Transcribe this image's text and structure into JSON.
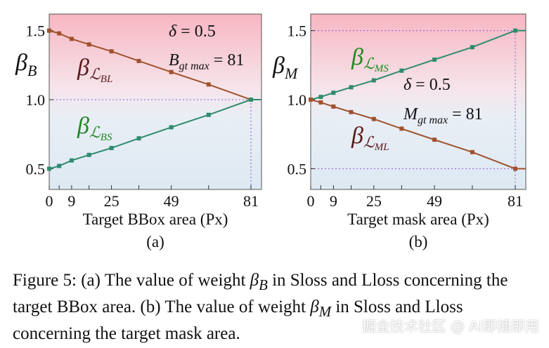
{
  "chart_data": [
    {
      "type": "line",
      "panel_label": "(a)",
      "xlabel": "Target BBox area (Px)",
      "ylabel": "β",
      "ylabel_sub": "B",
      "x_ticks": [
        0,
        4,
        9,
        16,
        25,
        36,
        49,
        64,
        81
      ],
      "x_tick_labels": [
        "0",
        "",
        "9",
        "",
        "25",
        "",
        "49",
        "",
        "81"
      ],
      "y_ticks": [
        0.5,
        1.0,
        1.5
      ],
      "y_tick_labels": [
        "0.5",
        "1.0",
        "1.5"
      ],
      "xlim": [
        0,
        81
      ],
      "ylim": [
        0.35,
        1.62
      ],
      "annotations": [
        {
          "text": "δ = 0.5"
        },
        {
          "text": "B",
          "sub": "gt max",
          "suffix": " = 81"
        }
      ],
      "series": [
        {
          "name": "β",
          "name_sub": "ℒ",
          "name_subsub": "BL",
          "color": "#a0522d",
          "label_color": "#5a1a1a",
          "x": [
            0,
            4,
            9,
            16,
            25,
            36,
            49,
            64,
            81,
            85
          ],
          "values": [
            1.5,
            1.48,
            1.44,
            1.4,
            1.35,
            1.28,
            1.2,
            1.11,
            1.0,
            1.0
          ]
        },
        {
          "name": "β",
          "name_sub": "ℒ",
          "name_subsub": "BS",
          "color": "#2e8b6e",
          "label_color": "#1f8a1f",
          "x": [
            0,
            4,
            9,
            16,
            25,
            36,
            49,
            64,
            81,
            85
          ],
          "values": [
            0.5,
            0.52,
            0.56,
            0.6,
            0.65,
            0.72,
            0.8,
            0.89,
            1.0,
            1.0
          ]
        }
      ]
    },
    {
      "type": "line",
      "panel_label": "(b)",
      "xlabel": "Target mask area (Px)",
      "ylabel": "β",
      "ylabel_sub": "M",
      "x_ticks": [
        0,
        4,
        9,
        16,
        25,
        36,
        49,
        64,
        81
      ],
      "x_tick_labels": [
        "0",
        "",
        "9",
        "",
        "25",
        "",
        "49",
        "",
        "81"
      ],
      "y_ticks": [
        0.5,
        1.0,
        1.5
      ],
      "y_tick_labels": [
        "0.5",
        "1.0",
        "1.5"
      ],
      "xlim": [
        0,
        81
      ],
      "ylim": [
        0.35,
        1.62
      ],
      "annotations": [
        {
          "text": "δ = 0.5"
        },
        {
          "text": "M",
          "sub": "gt max",
          "suffix": " = 81"
        }
      ],
      "series": [
        {
          "name": "β",
          "name_sub": "ℒ",
          "name_subsub": "MS",
          "color": "#2e8b6e",
          "label_color": "#1f8a1f",
          "x": [
            0,
            4,
            9,
            16,
            25,
            36,
            49,
            64,
            81,
            85
          ],
          "values": [
            1.0,
            1.02,
            1.05,
            1.09,
            1.14,
            1.21,
            1.29,
            1.38,
            1.5,
            1.5
          ]
        },
        {
          "name": "β",
          "name_sub": "ℒ",
          "name_subsub": "ML",
          "color": "#a0522d",
          "label_color": "#5a1a1a",
          "x": [
            0,
            4,
            9,
            16,
            25,
            36,
            49,
            64,
            81,
            85
          ],
          "values": [
            1.0,
            0.98,
            0.95,
            0.91,
            0.86,
            0.79,
            0.71,
            0.62,
            0.5,
            0.5
          ]
        }
      ]
    }
  ],
  "caption": {
    "part1": "Figure 5: (a) The value of weight ",
    "sym1": "β",
    "sym1_sub": "B",
    "part2": " in Sloss and Lloss concerning the target BBox area. (b) The value of weight ",
    "sym2": "β",
    "sym2_sub": "M",
    "part3": " in Sloss and Lloss concerning the target mask area."
  },
  "watermark": "掘金技术社区 @ AI即插即用"
}
